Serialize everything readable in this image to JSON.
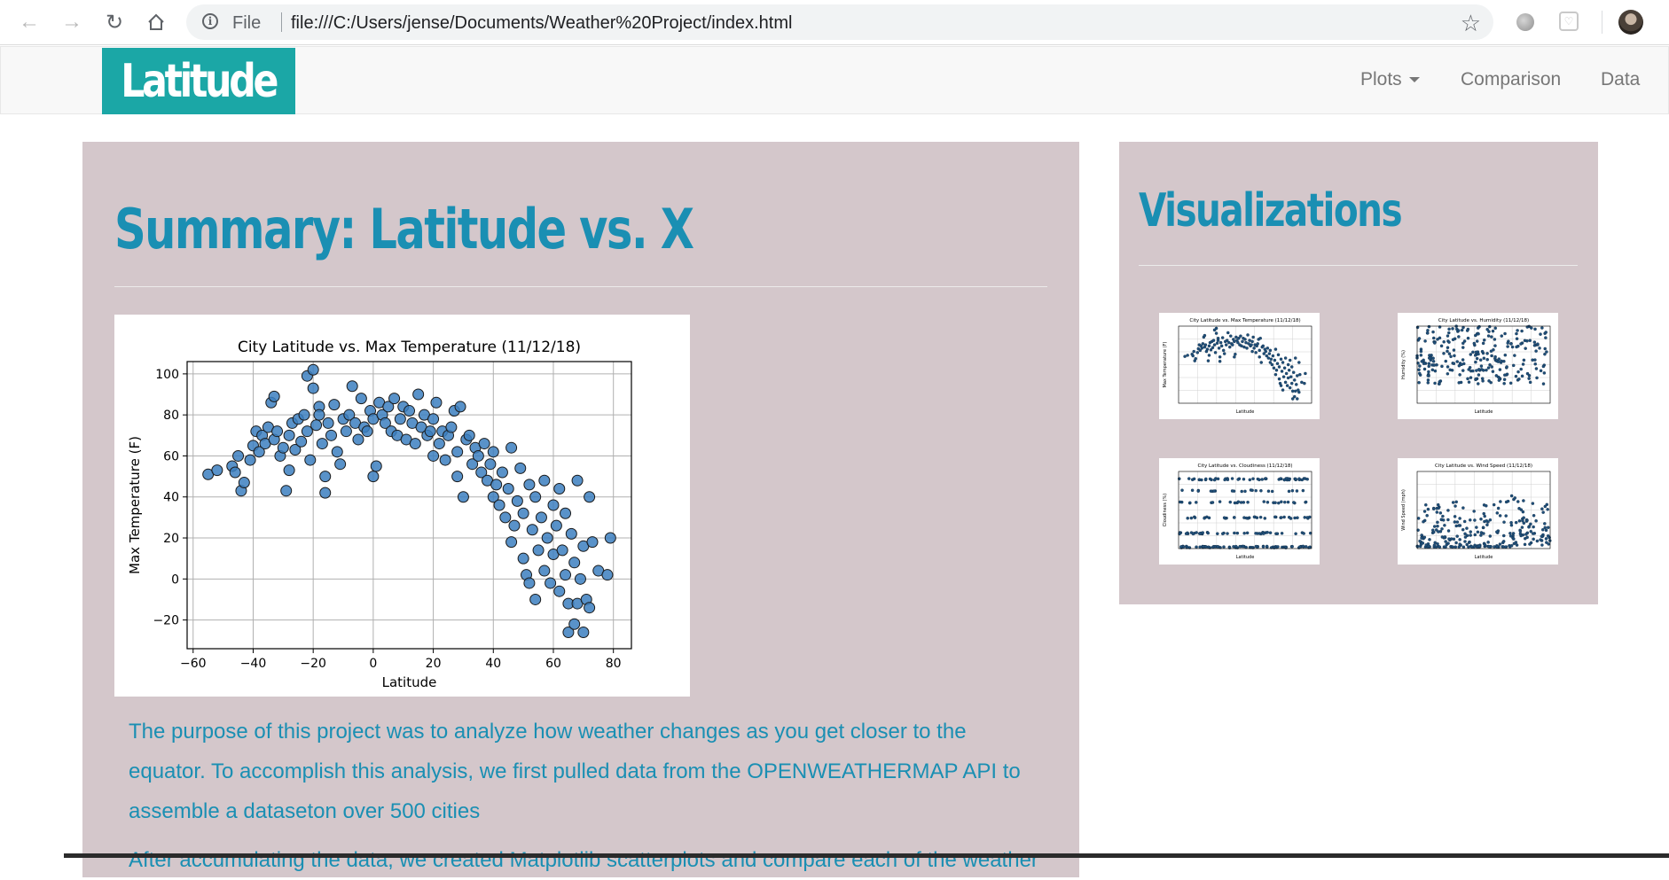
{
  "browser": {
    "omnibox_scheme": "File",
    "url": "file:///C:/Users/jense/Documents/Weather%20Project/index.html",
    "icons": [
      "back-icon",
      "forward-icon",
      "reload-icon",
      "home-icon",
      "info-icon",
      "star-icon",
      "extension-icon",
      "pocket-icon",
      "profile-avatar"
    ]
  },
  "navbar": {
    "brand": "Latitude",
    "items": [
      {
        "label": "Plots",
        "dropdown": true
      },
      {
        "label": "Comparison"
      },
      {
        "label": "Data"
      }
    ],
    "brand_color": "#1ba7a6"
  },
  "main": {
    "title": "Summary: Latitude vs. X",
    "paragraph1": "The purpose of this project was to analyze how weather changes as you get closer to the equator. To accomplish this analysis, we first pulled data from the OPENWEATHERMAP API to assemble a dataseton over 500 cities",
    "paragraph2_partial": "After accumulating the data, we created Matplotlib scatterplots and compare each of the weather",
    "accent_color": "#1a8fb3",
    "panel_color": "#d4c7cb"
  },
  "sidebar": {
    "title": "Visualizations",
    "thumbnails": [
      {
        "title": "City Latitude vs. Max Temperature (11/12/18)",
        "ylabel": "Max Temperature (F)",
        "xlabel": "Latitude"
      },
      {
        "title": "City Latitude vs. Humidity (11/12/18)",
        "ylabel": "Humidity (%)",
        "xlabel": "Latitude"
      },
      {
        "title": "City Latitude vs. Cloudiness (11/12/18)",
        "ylabel": "Cloudiness (%)",
        "xlabel": "Latitude"
      },
      {
        "title": "City Latitude vs. Wind Speed (11/12/18)",
        "ylabel": "Wind Speed (mph)",
        "xlabel": "Latitude"
      }
    ]
  },
  "chart_data": [
    {
      "type": "scatter",
      "title": "City Latitude vs. Max Temperature (11/12/18)",
      "xlabel": "Latitude",
      "ylabel": "Max Temperature (F)",
      "xlim": [
        -62,
        86
      ],
      "ylim": [
        -34,
        106
      ],
      "xticks": [
        -60,
        -40,
        -20,
        0,
        20,
        40,
        60,
        80
      ],
      "yticks": [
        -20,
        0,
        20,
        40,
        60,
        80,
        100
      ],
      "grid": true,
      "marker_color": "#3c7fbf",
      "points": [
        [
          -55,
          51
        ],
        [
          -52,
          53
        ],
        [
          -47,
          55
        ],
        [
          -46,
          52
        ],
        [
          -45,
          60
        ],
        [
          -44,
          43
        ],
        [
          -43,
          47
        ],
        [
          -41,
          58
        ],
        [
          -40,
          65
        ],
        [
          -39,
          72
        ],
        [
          -38,
          62
        ],
        [
          -37,
          70
        ],
        [
          -36,
          66
        ],
        [
          -35,
          74
        ],
        [
          -34,
          86
        ],
        [
          -33,
          89
        ],
        [
          -33,
          68
        ],
        [
          -32,
          72
        ],
        [
          -31,
          60
        ],
        [
          -30,
          64
        ],
        [
          -29,
          43
        ],
        [
          -28,
          53
        ],
        [
          -28,
          70
        ],
        [
          -27,
          76
        ],
        [
          -26,
          63
        ],
        [
          -25,
          78
        ],
        [
          -24,
          67
        ],
        [
          -23,
          80
        ],
        [
          -22,
          72
        ],
        [
          -22,
          99
        ],
        [
          -21,
          58
        ],
        [
          -20,
          102
        ],
        [
          -20,
          93
        ],
        [
          -19,
          75
        ],
        [
          -18,
          84
        ],
        [
          -18,
          80
        ],
        [
          -17,
          66
        ],
        [
          -16,
          50
        ],
        [
          -16,
          42
        ],
        [
          -15,
          76
        ],
        [
          -14,
          70
        ],
        [
          -13,
          85
        ],
        [
          -12,
          62
        ],
        [
          -11,
          56
        ],
        [
          -10,
          78
        ],
        [
          -9,
          72
        ],
        [
          -8,
          80
        ],
        [
          -7,
          94
        ],
        [
          -6,
          76
        ],
        [
          -5,
          68
        ],
        [
          -4,
          88
        ],
        [
          -3,
          74
        ],
        [
          -2,
          72
        ],
        [
          -1,
          82
        ],
        [
          0,
          78
        ],
        [
          0,
          50
        ],
        [
          1,
          55
        ],
        [
          2,
          86
        ],
        [
          3,
          80
        ],
        [
          4,
          76
        ],
        [
          5,
          84
        ],
        [
          6,
          72
        ],
        [
          7,
          88
        ],
        [
          8,
          70
        ],
        [
          9,
          78
        ],
        [
          10,
          84
        ],
        [
          11,
          68
        ],
        [
          12,
          82
        ],
        [
          13,
          76
        ],
        [
          14,
          66
        ],
        [
          15,
          90
        ],
        [
          16,
          74
        ],
        [
          17,
          80
        ],
        [
          18,
          70
        ],
        [
          19,
          72
        ],
        [
          20,
          78
        ],
        [
          20,
          60
        ],
        [
          21,
          86
        ],
        [
          22,
          66
        ],
        [
          23,
          72
        ],
        [
          24,
          58
        ],
        [
          25,
          70
        ],
        [
          26,
          74
        ],
        [
          27,
          82
        ],
        [
          28,
          62
        ],
        [
          28,
          50
        ],
        [
          29,
          84
        ],
        [
          30,
          40
        ],
        [
          31,
          68
        ],
        [
          32,
          70
        ],
        [
          33,
          56
        ],
        [
          34,
          64
        ],
        [
          35,
          60
        ],
        [
          36,
          52
        ],
        [
          37,
          66
        ],
        [
          38,
          48
        ],
        [
          39,
          56
        ],
        [
          40,
          62
        ],
        [
          40,
          40
        ],
        [
          41,
          46
        ],
        [
          42,
          36
        ],
        [
          43,
          52
        ],
        [
          44,
          30
        ],
        [
          45,
          44
        ],
        [
          46,
          64
        ],
        [
          46,
          18
        ],
        [
          47,
          26
        ],
        [
          48,
          38
        ],
        [
          49,
          54
        ],
        [
          50,
          10
        ],
        [
          50,
          32
        ],
        [
          51,
          2
        ],
        [
          52,
          46
        ],
        [
          52,
          -2
        ],
        [
          53,
          24
        ],
        [
          54,
          -10
        ],
        [
          54,
          40
        ],
        [
          55,
          14
        ],
        [
          56,
          30
        ],
        [
          57,
          4
        ],
        [
          57,
          48
        ],
        [
          58,
          20
        ],
        [
          59,
          -2
        ],
        [
          60,
          36
        ],
        [
          60,
          12
        ],
        [
          61,
          26
        ],
        [
          62,
          -6
        ],
        [
          62,
          44
        ],
        [
          63,
          14
        ],
        [
          64,
          2
        ],
        [
          64,
          32
        ],
        [
          65,
          -26
        ],
        [
          65,
          -12
        ],
        [
          66,
          22
        ],
        [
          67,
          8
        ],
        [
          67,
          -22
        ],
        [
          68,
          -12
        ],
        [
          68,
          48
        ],
        [
          69,
          0
        ],
        [
          70,
          -26
        ],
        [
          70,
          16
        ],
        [
          71,
          -10
        ],
        [
          72,
          -14
        ],
        [
          72,
          40
        ],
        [
          73,
          18
        ],
        [
          75,
          4
        ],
        [
          78,
          2
        ],
        [
          79,
          20
        ]
      ]
    }
  ]
}
